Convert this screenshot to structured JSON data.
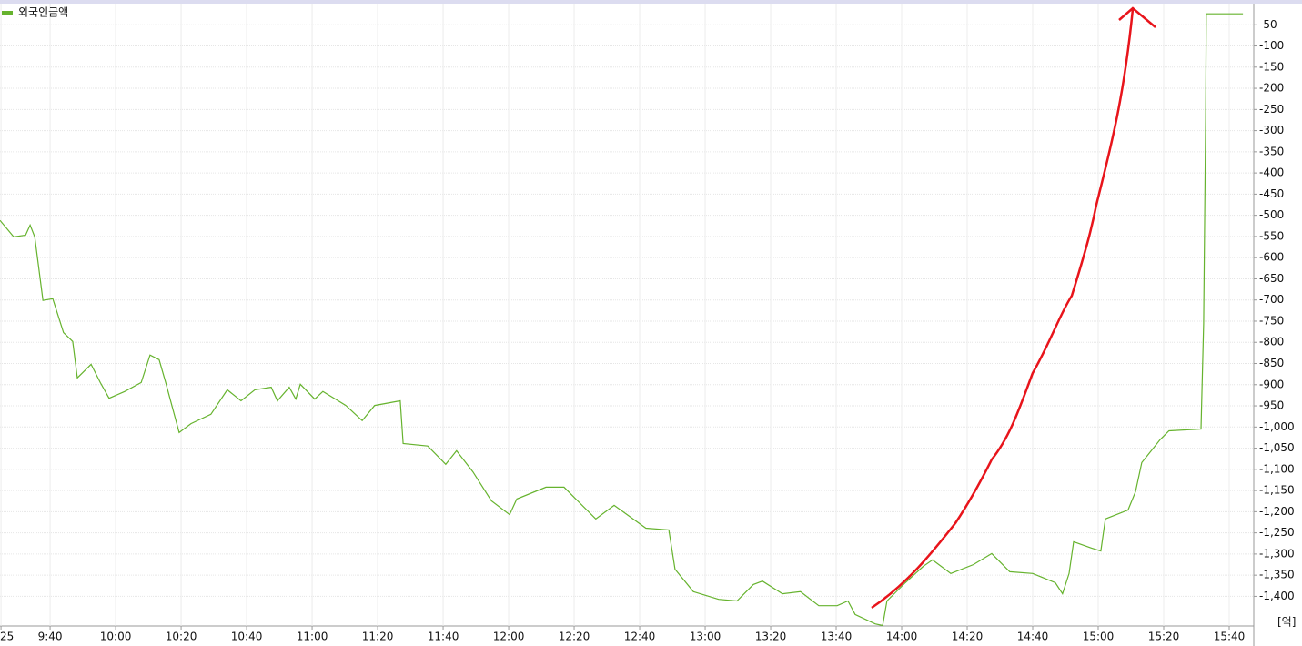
{
  "chart_data": {
    "type": "line",
    "legend_position": "upper left",
    "unit_label": "[억]",
    "grid": true,
    "series": [
      {
        "name": "외국인금액",
        "color": "#66b32e",
        "x": [
          24.7,
          28.9,
          32.5,
          33.9,
          35.3,
          37.8,
          40.8,
          44.1,
          46.9,
          48.3,
          52.5,
          55.3,
          58.0,
          62.8,
          67.8,
          70.5,
          73.3,
          75.3,
          79.4,
          83.0,
          89.1,
          94.1,
          98.3,
          102.5,
          107.5,
          109.4,
          113.0,
          115.0,
          116.4,
          120.8,
          123.3,
          130.3,
          135.3,
          139.1,
          146.9,
          147.8,
          155.3,
          160.8,
          164.1,
          169.1,
          174.7,
          180.3,
          182.5,
          191.4,
          196.9,
          199.7,
          206.6,
          212.2,
          221.9,
          228.9,
          230.8,
          236.4,
          244.1,
          249.7,
          254.7,
          257.5,
          263.6,
          269.1,
          274.7,
          280.3,
          283.6,
          285.8,
          291.9,
          294.2,
          295.5,
          301.1,
          306.6,
          309.4,
          315.0,
          321.9,
          327.5,
          333.0,
          340.0,
          346.9,
          349.1,
          351.1,
          352.5,
          358.0,
          360.8,
          362.2,
          369.1,
          371.4,
          373.3,
          378.9,
          381.6,
          391.4,
          392.2,
          392.8,
          393.0,
          404.2
        ],
        "values": [
          -512,
          -551,
          -547,
          -523,
          -551,
          -701,
          -697,
          -777,
          -798,
          -884,
          -852,
          -895,
          -932,
          -916,
          -895,
          -830,
          -841,
          -895,
          -1013,
          -992,
          -970,
          -912,
          -938,
          -912,
          -906,
          -938,
          -906,
          -934,
          -899,
          -934,
          -916,
          -949,
          -985,
          -949,
          -938,
          -1039,
          -1045,
          -1088,
          -1056,
          -1106,
          -1174,
          -1207,
          -1170,
          -1142,
          -1142,
          -1164,
          -1217,
          -1185,
          -1239,
          -1243,
          -1336,
          -1389,
          -1407,
          -1411,
          -1372,
          -1364,
          -1394,
          -1389,
          -1422,
          -1422,
          -1411,
          -1443,
          -1465,
          -1469,
          -1411,
          -1368,
          -1329,
          -1314,
          -1346,
          -1325,
          -1299,
          -1342,
          -1346,
          -1368,
          -1394,
          -1346,
          -1271,
          -1286,
          -1293,
          -1217,
          -1196,
          -1153,
          -1084,
          -1030,
          -1009,
          -1005,
          -755,
          -271,
          -24,
          -24
        ]
      }
    ],
    "xlim": [
      24.7,
      407.5
    ],
    "xticks": [
      {
        "value": 25,
        "label": "25"
      },
      {
        "value": 40,
        "label": "9:40"
      },
      {
        "value": 60,
        "label": "10:00"
      },
      {
        "value": 80,
        "label": "10:20"
      },
      {
        "value": 100,
        "label": "10:40"
      },
      {
        "value": 120,
        "label": "11:00"
      },
      {
        "value": 140,
        "label": "11:20"
      },
      {
        "value": 160,
        "label": "11:40"
      },
      {
        "value": 180,
        "label": "12:00"
      },
      {
        "value": 200,
        "label": "12:20"
      },
      {
        "value": 220,
        "label": "12:40"
      },
      {
        "value": 240,
        "label": "13:00"
      },
      {
        "value": 260,
        "label": "13:20"
      },
      {
        "value": 280,
        "label": "13:40"
      },
      {
        "value": 300,
        "label": "14:00"
      },
      {
        "value": 320,
        "label": "14:20"
      },
      {
        "value": 340,
        "label": "14:40"
      },
      {
        "value": 360,
        "label": "15:00"
      },
      {
        "value": 380,
        "label": "15:20"
      },
      {
        "value": 400,
        "label": "15:40"
      }
    ],
    "ylim": [
      -1470,
      0
    ],
    "yticks": [
      -50,
      -100,
      -150,
      -200,
      -250,
      -300,
      -350,
      -400,
      -450,
      -500,
      -550,
      -600,
      -650,
      -700,
      -750,
      -800,
      -850,
      -900,
      -950,
      {
        "value": -1000,
        "label": "-1,000"
      },
      {
        "value": -1050,
        "label": "-1,050"
      },
      {
        "value": -1100,
        "label": "-1,100"
      },
      {
        "value": -1150,
        "label": "-1,150"
      },
      {
        "value": -1200,
        "label": "-1,200"
      },
      {
        "value": -1250,
        "label": "-1,250"
      },
      {
        "value": -1300,
        "label": "-1,300"
      },
      {
        "value": -1350,
        "label": "-1,350"
      },
      {
        "value": -1400,
        "label": "-1,400"
      }
    ]
  }
}
